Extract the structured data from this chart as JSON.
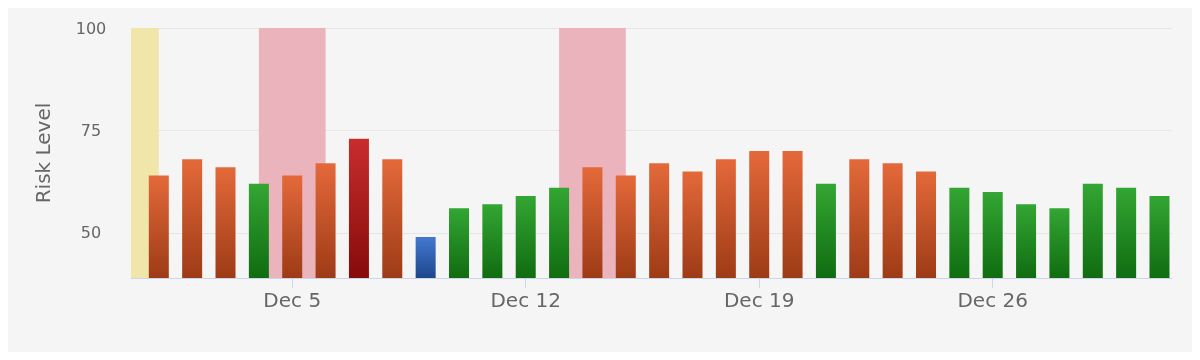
{
  "chart_data": {
    "type": "bar",
    "ylabel": "Risk Level",
    "x": [
      "--12-01",
      "--12-02",
      "--12-03",
      "--12-04",
      "--12-05",
      "--12-06",
      "--12-07",
      "--12-08",
      "--12-09",
      "--12-10",
      "--12-11",
      "--12-12",
      "--12-13",
      "--12-14",
      "--12-15",
      "--12-16",
      "--12-17",
      "--12-18",
      "--12-19",
      "--12-20",
      "--12-21",
      "--12-22",
      "--12-23",
      "--12-24",
      "--12-25",
      "--12-26",
      "--12-27",
      "--12-28",
      "--12-29",
      "--12-30",
      "--12-31"
    ],
    "values": [
      64,
      68,
      66,
      62,
      64,
      67,
      73,
      68,
      49,
      56,
      57,
      59,
      61,
      66,
      64,
      67,
      65,
      68,
      70,
      70,
      62,
      68,
      67,
      65,
      61,
      60,
      57,
      56,
      62,
      61,
      59
    ],
    "colors": [
      "#e0551f",
      "#e0551f",
      "#e0551f",
      "#179a17",
      "#e0551f",
      "#e0551f",
      "#c01010",
      "#e0551f",
      "#2a66c8",
      "#179a17",
      "#179a17",
      "#179a17",
      "#179a17",
      "#e0551f",
      "#e0551f",
      "#e0551f",
      "#e0551f",
      "#e0551f",
      "#e0551f",
      "#e0551f",
      "#179a17",
      "#e0551f",
      "#e0551f",
      "#e0551f",
      "#179a17",
      "#179a17",
      "#179a17",
      "#179a17",
      "#179a17",
      "#179a17",
      "#179a17"
    ],
    "xlim": [
      "--11-30T04:00",
      "--12-31T09:00"
    ],
    "xticks": [
      {
        "value": "--12-05",
        "label": "Dec 5"
      },
      {
        "value": "--12-12",
        "label": "Dec 12"
      },
      {
        "value": "--12-19",
        "label": "Dec 19"
      },
      {
        "value": "--12-26",
        "label": "Dec 26"
      }
    ],
    "ylim": [
      39,
      100
    ],
    "yticks": [
      50,
      75,
      100
    ],
    "grid": "y",
    "bands": [
      {
        "axis": "x",
        "from": "--11-30T04:00",
        "to": "--12-01",
        "color": "#f0e6aa"
      },
      {
        "axis": "x",
        "from": "--12-04",
        "to": "--12-06",
        "color": "#ebb3bc"
      },
      {
        "axis": "x",
        "from": "--12-13",
        "to": "--12-15",
        "color": "#ebb3bc"
      }
    ]
  }
}
